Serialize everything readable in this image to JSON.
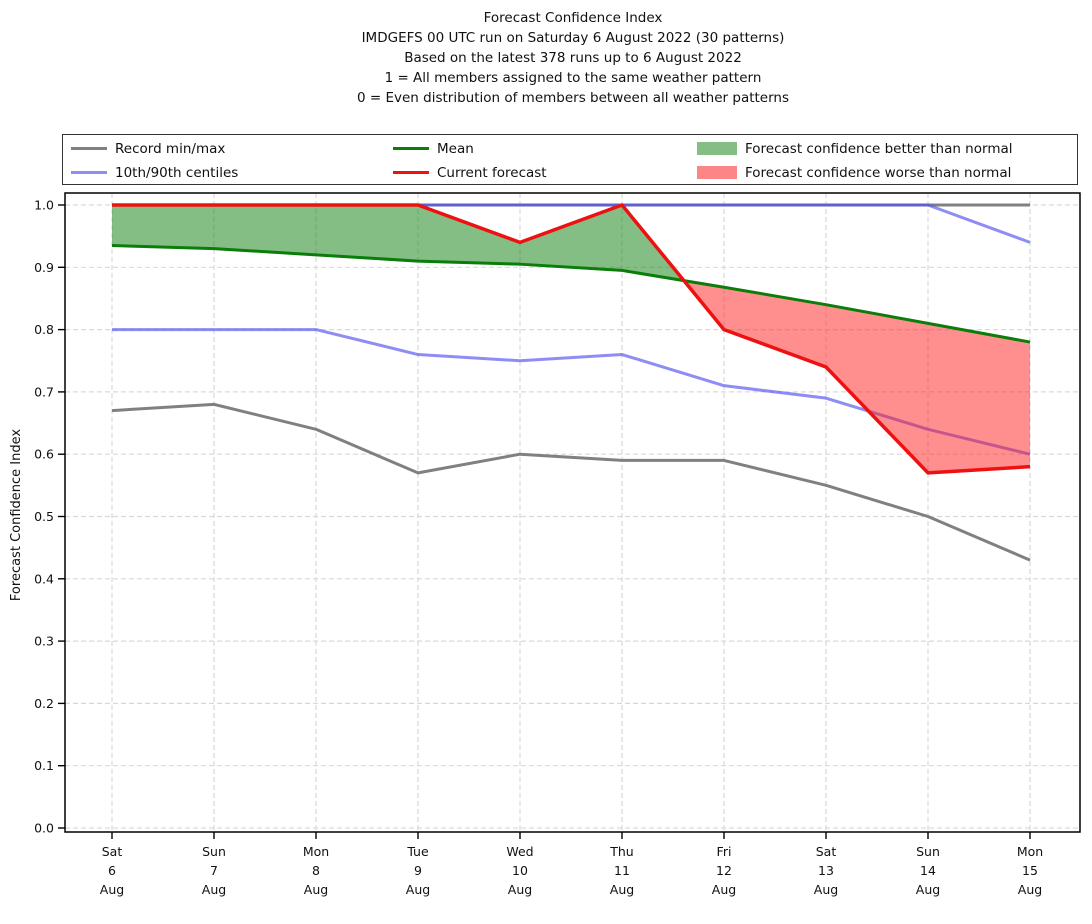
{
  "title": {
    "lines": [
      "Forecast Confidence Index",
      "IMDGEFS 00 UTC run on Saturday 6 August 2022 (30 patterns)",
      "Based on the latest 378 runs up to 6 August 2022",
      "1 = All members assigned to the same weather pattern",
      "0 = Even distribution of members between all weather patterns"
    ]
  },
  "legend": {
    "items": [
      {
        "label": "Record min/max",
        "marker": "line",
        "color": "#808080"
      },
      {
        "label": "10th/90th centiles",
        "marker": "line",
        "color": "#8d8df5"
      },
      {
        "label": "Mean",
        "marker": "line",
        "color": "#0a7d0a"
      },
      {
        "label": "Current forecast",
        "marker": "line",
        "color": "#ee1111"
      },
      {
        "label": "Forecast confidence better than normal",
        "marker": "patch",
        "color": "#84be84"
      },
      {
        "label": "Forecast confidence worse than normal",
        "marker": "patch",
        "color": "#fc8585"
      }
    ]
  },
  "y_axis": {
    "label": "Forecast Confidence Index",
    "ticks": [
      "1.0",
      "0.9",
      "0.8",
      "0.7",
      "0.6",
      "0.5",
      "0.4",
      "0.3",
      "0.2",
      "0.1",
      "0.0"
    ]
  },
  "x_axis": {
    "ticks": [
      {
        "day": "Sat",
        "date": "6",
        "month": "Aug"
      },
      {
        "day": "Sun",
        "date": "7",
        "month": "Aug"
      },
      {
        "day": "Mon",
        "date": "8",
        "month": "Aug"
      },
      {
        "day": "Tue",
        "date": "9",
        "month": "Aug"
      },
      {
        "day": "Wed",
        "date": "10",
        "month": "Aug"
      },
      {
        "day": "Thu",
        "date": "11",
        "month": "Aug"
      },
      {
        "day": "Fri",
        "date": "12",
        "month": "Aug"
      },
      {
        "day": "Sat",
        "date": "13",
        "month": "Aug"
      },
      {
        "day": "Sun",
        "date": "14",
        "month": "Aug"
      },
      {
        "day": "Mon",
        "date": "15",
        "month": "Aug"
      }
    ]
  },
  "chart_data": {
    "type": "line",
    "title": "Forecast Confidence Index",
    "ylabel": "Forecast Confidence Index",
    "ylim": [
      0.0,
      1.0
    ],
    "grid": true,
    "legend_position": "top",
    "categories": [
      "Sat 6 Aug",
      "Sun 7 Aug",
      "Mon 8 Aug",
      "Tue 9 Aug",
      "Wed 10 Aug",
      "Thu 11 Aug",
      "Fri 12 Aug",
      "Sat 13 Aug",
      "Sun 14 Aug",
      "Mon 15 Aug"
    ],
    "series": [
      {
        "name": "Record max",
        "color": "#808080",
        "values": [
          1.0,
          1.0,
          1.0,
          1.0,
          1.0,
          1.0,
          1.0,
          1.0,
          1.0,
          1.0
        ]
      },
      {
        "name": "Record min",
        "color": "#808080",
        "values": [
          0.67,
          0.68,
          0.64,
          0.57,
          0.6,
          0.59,
          0.59,
          0.55,
          0.5,
          0.43
        ]
      },
      {
        "name": "90th centile",
        "color": "#5050f0",
        "values": [
          1.0,
          1.0,
          1.0,
          1.0,
          1.0,
          1.0,
          1.0,
          1.0,
          1.0,
          0.94
        ]
      },
      {
        "name": "10th centile",
        "color": "#5050f0",
        "values": [
          0.8,
          0.8,
          0.8,
          0.76,
          0.75,
          0.76,
          0.71,
          0.69,
          0.64,
          0.6
        ]
      },
      {
        "name": "Mean",
        "color": "#0a7d0a",
        "values": [
          0.935,
          0.93,
          0.92,
          0.91,
          0.905,
          0.895,
          0.868,
          0.84,
          0.81,
          0.78
        ]
      },
      {
        "name": "Current forecast",
        "color": "#ee1111",
        "values": [
          1.0,
          1.0,
          1.0,
          1.0,
          0.94,
          1.0,
          0.8,
          0.74,
          0.57,
          0.58
        ]
      }
    ],
    "fills": {
      "between": [
        "Current forecast",
        "Mean"
      ],
      "better_color": "#0a7d0a",
      "worse_color": "#ff2020",
      "opacity": 0.5
    }
  }
}
